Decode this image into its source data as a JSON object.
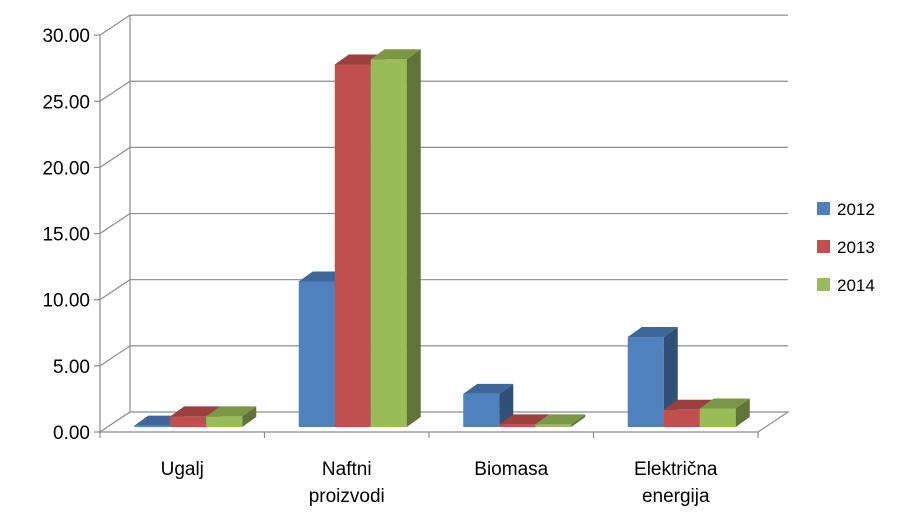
{
  "chart_data": {
    "type": "bar",
    "categories": [
      [
        "Ugalj"
      ],
      [
        "Naftni",
        "proizvodi"
      ],
      [
        "Biomasa"
      ],
      [
        "Električna",
        "energija"
      ]
    ],
    "series": [
      {
        "name": "2012",
        "color": "#4F81BD",
        "values": [
          0.1,
          11.0,
          2.5,
          6.8
        ]
      },
      {
        "name": "2013",
        "color": "#C0504D",
        "values": [
          0.8,
          27.4,
          0.2,
          1.3
        ]
      },
      {
        "name": "2014",
        "color": "#9BBB59",
        "values": [
          0.8,
          27.8,
          0.2,
          1.4
        ]
      }
    ],
    "yticks": [
      "0.00",
      "5.00",
      "10.00",
      "15.00",
      "20.00",
      "25.00",
      "30.00"
    ],
    "ylim": [
      0,
      30
    ],
    "grid": true,
    "legend_position": "right",
    "three_d": true
  }
}
